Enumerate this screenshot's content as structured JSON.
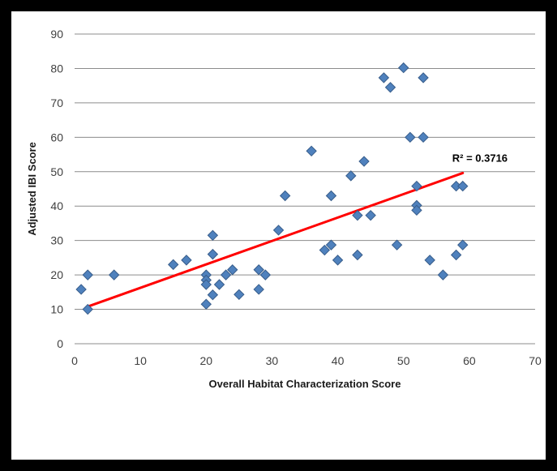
{
  "chart_data": {
    "type": "scatter",
    "title": "",
    "xlabel": "Overall Habitat Characterization Score",
    "ylabel": "Adjusted IBI Score",
    "xlim": [
      0,
      70
    ],
    "ylim": [
      0,
      90
    ],
    "x_ticks": [
      "0",
      "10",
      "20",
      "30",
      "40",
      "50",
      "60",
      "70"
    ],
    "y_ticks": [
      "0",
      "10",
      "20",
      "30",
      "40",
      "50",
      "60",
      "70",
      "80",
      "90"
    ],
    "grid": "horizontal",
    "legend": "none",
    "marker": "diamond",
    "marker_color": "#4F81BD",
    "marker_edge_color": "#385D8A",
    "trendline": {
      "type": "linear",
      "color": "#FF0000",
      "x": [
        2,
        59
      ],
      "y": [
        10.8,
        49.6
      ],
      "annotation": "R² = 0.3716"
    },
    "points": [
      [
        1,
        15.8
      ],
      [
        2,
        20
      ],
      [
        2,
        10
      ],
      [
        6,
        20
      ],
      [
        15,
        23
      ],
      [
        17,
        24.3
      ],
      [
        20,
        20
      ],
      [
        20,
        18.5
      ],
      [
        20,
        17.2
      ],
      [
        20,
        11.5
      ],
      [
        21,
        31.5
      ],
      [
        21,
        26
      ],
      [
        21,
        14.2
      ],
      [
        22,
        17.2
      ],
      [
        23,
        20
      ],
      [
        24,
        21.5
      ],
      [
        25,
        14.3
      ],
      [
        28,
        21.5
      ],
      [
        28,
        15.8
      ],
      [
        29,
        20
      ],
      [
        31,
        33
      ],
      [
        32,
        43
      ],
      [
        36,
        56
      ],
      [
        38,
        27.2
      ],
      [
        39,
        28.7
      ],
      [
        39,
        43
      ],
      [
        40,
        24.3
      ],
      [
        42,
        48.8
      ],
      [
        43,
        37.3
      ],
      [
        43,
        25.8
      ],
      [
        44,
        53
      ],
      [
        45,
        37.3
      ],
      [
        47,
        77.3
      ],
      [
        48,
        74.5
      ],
      [
        49,
        28.7
      ],
      [
        50,
        80.2
      ],
      [
        51,
        60
      ],
      [
        52,
        45.8
      ],
      [
        52,
        40.2
      ],
      [
        52,
        38.8
      ],
      [
        53,
        77.3
      ],
      [
        53,
        60
      ],
      [
        54,
        24.3
      ],
      [
        56,
        20
      ],
      [
        58,
        45.8
      ],
      [
        58,
        25.8
      ],
      [
        59,
        45.8
      ],
      [
        59,
        28.7
      ]
    ]
  }
}
